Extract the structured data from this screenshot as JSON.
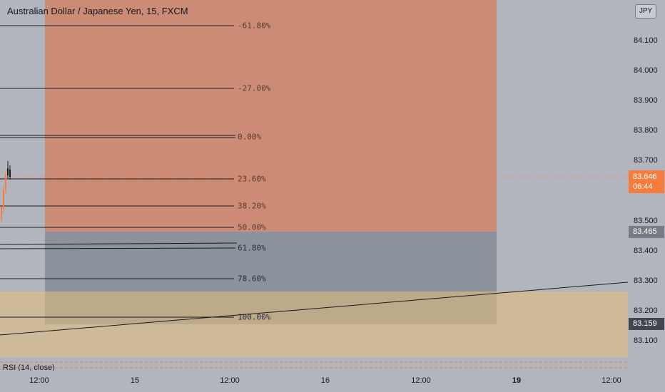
{
  "header": {
    "symbol_title": "Australian Dollar / Japanese Yen, 15, FXCM"
  },
  "fibonacci": {
    "levels": [
      {
        "label": "-61.80%"
      },
      {
        "label": "-27.00%"
      },
      {
        "label": "0.00%"
      },
      {
        "label": "23.60%"
      },
      {
        "label": "38.20%"
      },
      {
        "label": "50.00%"
      },
      {
        "label": "61.80%"
      },
      {
        "label": "78.60%"
      },
      {
        "label": "100.00%"
      }
    ]
  },
  "price_axis": {
    "currency": "JPY",
    "ticks": [
      "84.100",
      "84.000",
      "83.900",
      "83.800",
      "83.700",
      "83.500",
      "83.400",
      "83.300",
      "83.200",
      "83.100"
    ],
    "current_price": "83.646",
    "countdown": "06:44",
    "marker_a": "83.465",
    "marker_b": "83.159"
  },
  "time_axis": {
    "ticks": [
      {
        "label": "12:00",
        "bold": false
      },
      {
        "label": "15",
        "bold": false
      },
      {
        "label": "12:00",
        "bold": false
      },
      {
        "label": "16",
        "bold": false
      },
      {
        "label": "12:00",
        "bold": false
      },
      {
        "label": "19",
        "bold": true
      },
      {
        "label": "12:00",
        "bold": false
      }
    ]
  },
  "indicator": {
    "label": "RSI (14, close)"
  },
  "colors": {
    "background": "#b2b5be",
    "profit_zone": "#cc8b75",
    "current_price": "#f57c3a",
    "marker_grey": "#787b86",
    "marker_dark": "#434651",
    "candle_up": "#f57c3a"
  }
}
